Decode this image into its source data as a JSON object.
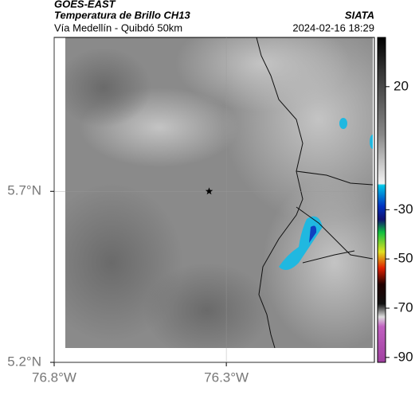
{
  "header": {
    "source": "GOES-EAST",
    "title": "Temperatura de Brillo CH13",
    "subtitle": "Vía Medellín - Quibdó 50km",
    "org": "SIATA",
    "datetime": "2024-02-16 18:29"
  },
  "map": {
    "xlim": [
      -76.8,
      -75.87
    ],
    "ylim": [
      5.2,
      6.15
    ],
    "xticks": [
      {
        "value": -76.8,
        "label": "76.8°W"
      },
      {
        "value": -76.3,
        "label": "76.3°W"
      }
    ],
    "yticks": [
      {
        "value": 5.7,
        "label": "5.7°N"
      },
      {
        "value": 5.2,
        "label": "5.2°N"
      }
    ],
    "marker": {
      "lon": -76.35,
      "lat": 5.7
    }
  },
  "colorbar": {
    "lim": [
      40,
      -92
    ],
    "ticks": [
      20,
      -30,
      -50,
      -70,
      -90
    ]
  }
}
